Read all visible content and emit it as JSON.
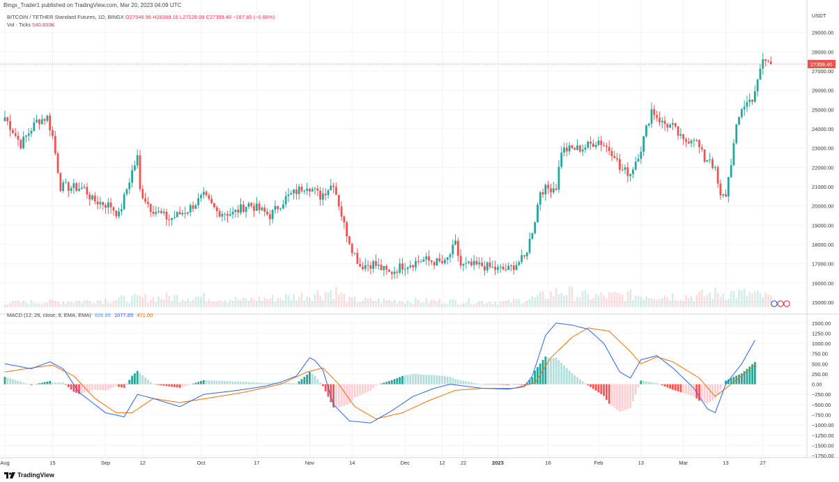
{
  "attribution": "Bingx_Trader1 published on TradingView.com, Mar 20, 2023 04:09 UTC",
  "legend": {
    "symbol": "BITCOIN / TETHER Standard Futures, 1D, BINGX",
    "ohlc": "O27546.96 H28389.16 L27128.09 C27359.40 −187.65 (−0.68%)",
    "volume_label": "Vol · Ticks",
    "volume_value": "540.833K"
  },
  "macd_legend": {
    "label": "MACD (12, 26, close, 9, EMA, EMA)",
    "histogram": "606.85",
    "macd": "1077.85",
    "signal": "471.00"
  },
  "price_axis": {
    "unit": "USDT",
    "ticks": [
      "29000.00",
      "28000.00",
      "27000.00",
      "26000.00",
      "25000.00",
      "24000.00",
      "23000.00",
      "22000.00",
      "21000.00",
      "20000.00",
      "19000.00",
      "18000.00",
      "17000.00",
      "16000.00",
      "15000.00"
    ],
    "last_price": "27359.40"
  },
  "macd_axis": {
    "ticks": [
      "1500.00",
      "1250.00",
      "1000.00",
      "750.00",
      "500.00",
      "250.00",
      "0.00",
      "−250.00",
      "−500.00",
      "−750.00",
      "−1000.00",
      "−1250.00",
      "−1500.00",
      "−1750.00"
    ]
  },
  "time_axis": {
    "ticks": [
      "Aug",
      "15",
      "Sep",
      "12",
      "Oct",
      "17",
      "Nov",
      "14",
      "Dec",
      "12",
      "22",
      "2023",
      "16",
      "Feb",
      "13",
      "Mar",
      "13",
      "27"
    ]
  },
  "brand": "TradingView",
  "colors": {
    "up": "#26a69a",
    "down": "#ef5350",
    "macd": "#2962ff",
    "signal": "#ff6d00",
    "grid": "#f0f3fa"
  },
  "chart_data": {
    "type": "candlestick",
    "price_range": [
      14600,
      29600
    ],
    "anchors": [
      [
        0,
        24600
      ],
      [
        6,
        23200
      ],
      [
        12,
        24400
      ],
      [
        16,
        24600
      ],
      [
        18,
        23600
      ],
      [
        21,
        21000
      ],
      [
        30,
        20900
      ],
      [
        33,
        20300
      ],
      [
        40,
        20000
      ],
      [
        43,
        19500
      ],
      [
        48,
        21800
      ],
      [
        50,
        22500
      ],
      [
        51,
        20800
      ],
      [
        55,
        19900
      ],
      [
        62,
        19300
      ],
      [
        69,
        19800
      ],
      [
        75,
        20500
      ],
      [
        80,
        19700
      ],
      [
        86,
        19600
      ],
      [
        92,
        20100
      ],
      [
        100,
        19500
      ],
      [
        106,
        20400
      ],
      [
        114,
        21100
      ],
      [
        119,
        20500
      ],
      [
        124,
        21200
      ],
      [
        128,
        19000
      ],
      [
        131,
        17800
      ],
      [
        134,
        16900
      ],
      [
        139,
        17000
      ],
      [
        145,
        16500
      ],
      [
        150,
        16900
      ],
      [
        158,
        17200
      ],
      [
        166,
        17000
      ],
      [
        170,
        18000
      ],
      [
        172,
        16900
      ],
      [
        180,
        16900
      ],
      [
        186,
        16700
      ],
      [
        190,
        16700
      ],
      [
        196,
        17300
      ],
      [
        198,
        18200
      ],
      [
        200,
        19300
      ],
      [
        202,
        20800
      ],
      [
        208,
        21000
      ],
      [
        210,
        22900
      ],
      [
        218,
        23000
      ],
      [
        224,
        23400
      ],
      [
        230,
        22700
      ],
      [
        232,
        21900
      ],
      [
        236,
        21700
      ],
      [
        240,
        23000
      ],
      [
        244,
        25000
      ],
      [
        248,
        24300
      ],
      [
        252,
        24100
      ],
      [
        256,
        23300
      ],
      [
        260,
        23600
      ],
      [
        264,
        22400
      ],
      [
        266,
        22500
      ],
      [
        268,
        21800
      ],
      [
        270,
        20400
      ],
      [
        272,
        20600
      ],
      [
        276,
        24000
      ],
      [
        278,
        25100
      ],
      [
        282,
        25600
      ],
      [
        284,
        26400
      ],
      [
        286,
        27600
      ],
      [
        289,
        27359
      ]
    ],
    "macd_range": [
      -1800,
      1650
    ],
    "macd_anchors": [
      [
        0,
        500
      ],
      [
        10,
        380
      ],
      [
        17,
        550
      ],
      [
        22,
        380
      ],
      [
        28,
        -200
      ],
      [
        38,
        -700
      ],
      [
        45,
        -800
      ],
      [
        50,
        -250
      ],
      [
        56,
        -350
      ],
      [
        66,
        -550
      ],
      [
        75,
        -250
      ],
      [
        88,
        -150
      ],
      [
        98,
        -50
      ],
      [
        104,
        50
      ],
      [
        110,
        200
      ],
      [
        115,
        650
      ],
      [
        117,
        580
      ],
      [
        120,
        350
      ],
      [
        124,
        -500
      ],
      [
        130,
        -900
      ],
      [
        138,
        -950
      ],
      [
        146,
        -650
      ],
      [
        154,
        -300
      ],
      [
        162,
        -100
      ],
      [
        168,
        0
      ],
      [
        180,
        -100
      ],
      [
        190,
        -120
      ],
      [
        196,
        -60
      ],
      [
        199,
        200
      ],
      [
        204,
        1200
      ],
      [
        208,
        1500
      ],
      [
        214,
        1450
      ],
      [
        220,
        1350
      ],
      [
        226,
        1000
      ],
      [
        232,
        300
      ],
      [
        236,
        150
      ],
      [
        240,
        600
      ],
      [
        246,
        700
      ],
      [
        252,
        400
      ],
      [
        260,
        -100
      ],
      [
        265,
        -600
      ],
      [
        268,
        -700
      ],
      [
        272,
        0
      ],
      [
        278,
        500
      ],
      [
        283,
        1077
      ]
    ],
    "signal_anchors": [
      [
        0,
        300
      ],
      [
        10,
        400
      ],
      [
        18,
        470
      ],
      [
        26,
        200
      ],
      [
        34,
        -350
      ],
      [
        42,
        -700
      ],
      [
        48,
        -700
      ],
      [
        56,
        -350
      ],
      [
        66,
        -450
      ],
      [
        76,
        -350
      ],
      [
        90,
        -200
      ],
      [
        104,
        0
      ],
      [
        114,
        300
      ],
      [
        120,
        400
      ],
      [
        126,
        0
      ],
      [
        132,
        -550
      ],
      [
        140,
        -850
      ],
      [
        150,
        -700
      ],
      [
        160,
        -400
      ],
      [
        170,
        -150
      ],
      [
        180,
        -100
      ],
      [
        192,
        -100
      ],
      [
        200,
        30
      ],
      [
        206,
        650
      ],
      [
        214,
        1150
      ],
      [
        220,
        1380
      ],
      [
        228,
        1300
      ],
      [
        236,
        800
      ],
      [
        240,
        500
      ],
      [
        246,
        670
      ],
      [
        252,
        550
      ],
      [
        262,
        150
      ],
      [
        268,
        -300
      ],
      [
        276,
        100
      ],
      [
        283,
        471
      ]
    ],
    "volume_anchors": [
      [
        0,
        0.25
      ],
      [
        30,
        0.35
      ],
      [
        50,
        0.5
      ],
      [
        70,
        0.6
      ],
      [
        90,
        0.4
      ],
      [
        110,
        0.6
      ],
      [
        120,
        0.8
      ],
      [
        124,
        0.95
      ],
      [
        130,
        0.4
      ],
      [
        160,
        0.35
      ],
      [
        190,
        0.3
      ],
      [
        200,
        0.5
      ],
      [
        210,
        0.9
      ],
      [
        220,
        0.6
      ],
      [
        245,
        0.7
      ],
      [
        260,
        0.6
      ],
      [
        270,
        0.8
      ],
      [
        280,
        0.75
      ],
      [
        289,
        0.55
      ]
    ]
  }
}
